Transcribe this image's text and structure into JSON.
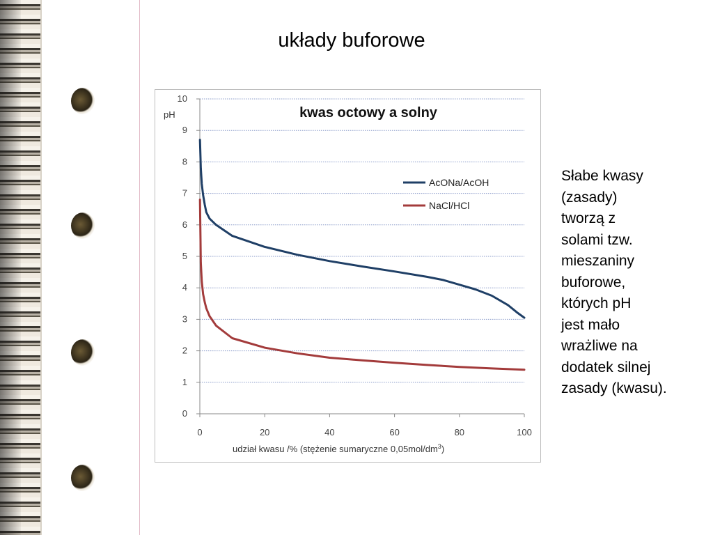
{
  "page_title": "układy buforowe",
  "side_text": [
    "Słabe kwasy",
    "(zasady)",
    "tworzą z",
    "solami tzw.",
    "mieszaniny",
    "buforowe,",
    "których pH",
    "jest mało",
    "wrażliwe na",
    "dodatek silnej",
    "zasady (kwasu)."
  ],
  "chart_data": {
    "type": "line",
    "title": "kwas octowy a solny",
    "ylabel": "pH",
    "xlabel": "udział kwasu /% (stężenie sumaryczne 0,05mol/dm",
    "xlabel_sup": "3",
    "xlabel_tail": ")",
    "xlim": [
      0,
      100
    ],
    "ylim": [
      0,
      10
    ],
    "x_ticks": [
      "0",
      "20",
      "40",
      "60",
      "80",
      "100"
    ],
    "y_ticks": [
      "0",
      "1",
      "2",
      "3",
      "4",
      "5",
      "6",
      "7",
      "8",
      "9",
      "10"
    ],
    "grid": true,
    "legend": "right",
    "series": [
      {
        "name": "AcONa/AcOH",
        "color": "#1f3f66",
        "x": [
          0.05,
          0.3,
          0.6,
          1,
          1.5,
          2,
          3,
          5,
          10,
          20,
          30,
          40,
          50,
          60,
          70,
          75,
          80,
          85,
          90,
          95,
          98,
          100
        ],
        "y": [
          8.7,
          7.8,
          7.3,
          6.95,
          6.65,
          6.4,
          6.2,
          6.0,
          5.65,
          5.3,
          5.05,
          4.85,
          4.68,
          4.52,
          4.35,
          4.25,
          4.1,
          3.95,
          3.75,
          3.45,
          3.2,
          3.05
        ]
      },
      {
        "name": "NaCl/HCl",
        "color": "#a33b3b",
        "x": [
          0.05,
          0.3,
          0.6,
          1,
          1.5,
          2,
          3,
          5,
          10,
          20,
          30,
          40,
          50,
          60,
          70,
          80,
          90,
          100
        ],
        "y": [
          6.8,
          4.8,
          4.2,
          3.8,
          3.55,
          3.35,
          3.1,
          2.8,
          2.4,
          2.1,
          1.92,
          1.78,
          1.7,
          1.62,
          1.55,
          1.49,
          1.44,
          1.4
        ]
      }
    ]
  }
}
